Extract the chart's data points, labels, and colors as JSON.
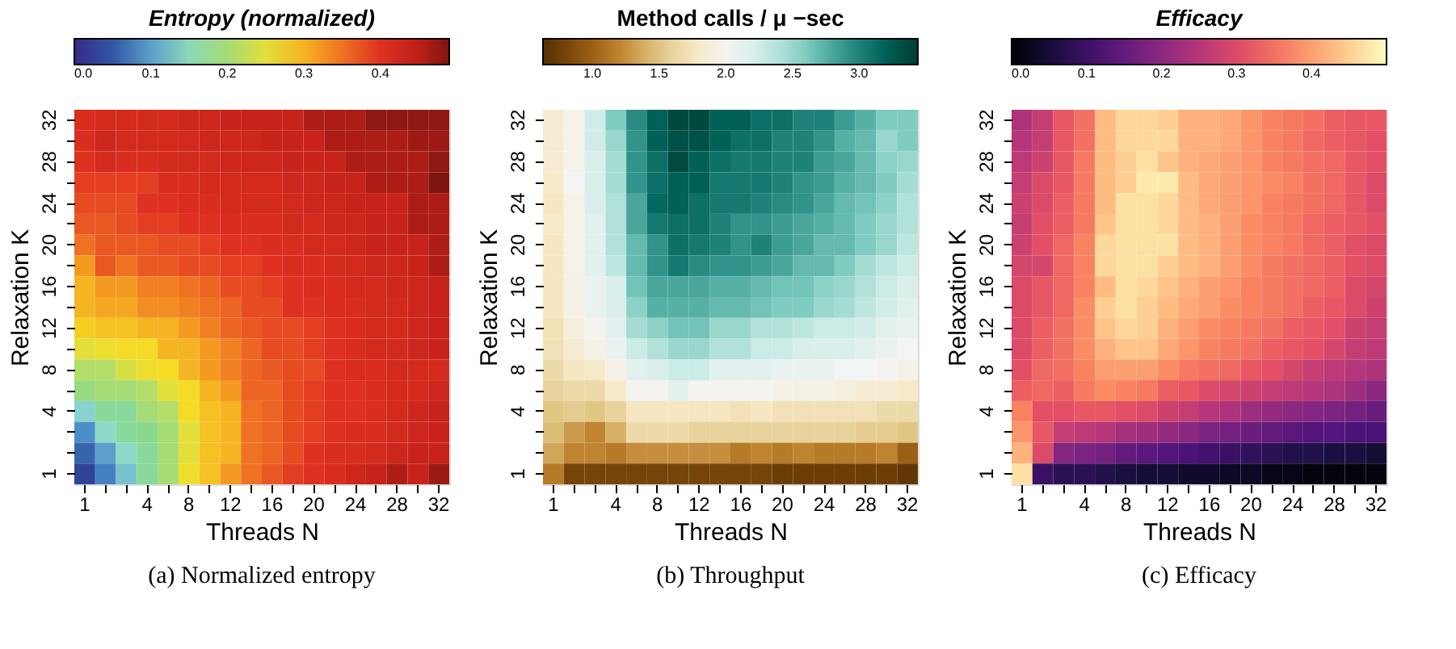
{
  "chart_data": [
    {
      "type": "heatmap",
      "clabel": "Entropy (normalized)",
      "xlabel": "Threads N",
      "ylabel": "Relaxation K",
      "annotations": [
        "(a) Normalized entropy"
      ],
      "categories": [
        "1",
        null,
        null,
        "4",
        null,
        "8",
        null,
        "12",
        null,
        "16",
        null,
        "20",
        null,
        "24",
        null,
        "28",
        null,
        "32"
      ],
      "y_categories": [
        "32",
        null,
        "28",
        null,
        "24",
        null,
        "20",
        null,
        "16",
        null,
        "12",
        null,
        "8",
        null,
        "4",
        null,
        null,
        "1"
      ],
      "clim": [
        0,
        0.49
      ],
      "cticks": [
        {
          "value": 0,
          "label": "0.0"
        },
        0.1,
        0.2,
        0.3,
        0.4
      ],
      "colors": [
        "#352a87",
        "#2f4fa0",
        "#4a8cc8",
        "#8fd8d0",
        "#86d98f",
        "#c5e05a",
        "#f5de25",
        "#f5a521",
        "#ee6a22",
        "#df3021",
        "#c42119",
        "#7f1510"
      ],
      "cells": [
        [
          0.41,
          0.42,
          0.42,
          0.42,
          0.42,
          0.43,
          0.43,
          0.44,
          0.44,
          0.44,
          0.44,
          0.46,
          0.46,
          0.46,
          0.48,
          0.48,
          0.48,
          0.48
        ],
        [
          0.41,
          0.43,
          0.42,
          0.42,
          0.42,
          0.42,
          0.43,
          0.43,
          0.43,
          0.44,
          0.44,
          0.44,
          0.46,
          0.46,
          0.46,
          0.46,
          0.47,
          0.47
        ],
        [
          0.4,
          0.42,
          0.41,
          0.41,
          0.42,
          0.42,
          0.42,
          0.43,
          0.43,
          0.43,
          0.44,
          0.44,
          0.44,
          0.46,
          0.46,
          0.46,
          0.46,
          0.48
        ],
        [
          0.39,
          0.39,
          0.39,
          0.39,
          0.41,
          0.41,
          0.42,
          0.42,
          0.42,
          0.42,
          0.43,
          0.43,
          0.44,
          0.44,
          0.46,
          0.46,
          0.46,
          0.49
        ],
        [
          0.38,
          0.38,
          0.38,
          0.4,
          0.4,
          0.41,
          0.41,
          0.42,
          0.42,
          0.42,
          0.42,
          0.43,
          0.43,
          0.44,
          0.44,
          0.44,
          0.46,
          0.46
        ],
        [
          0.37,
          0.37,
          0.38,
          0.39,
          0.39,
          0.4,
          0.4,
          0.41,
          0.41,
          0.41,
          0.42,
          0.42,
          0.43,
          0.43,
          0.44,
          0.44,
          0.46,
          0.46
        ],
        [
          0.35,
          0.37,
          0.37,
          0.37,
          0.38,
          0.38,
          0.39,
          0.4,
          0.4,
          0.41,
          0.41,
          0.42,
          0.42,
          0.43,
          0.44,
          0.44,
          0.44,
          0.46
        ],
        [
          0.32,
          0.37,
          0.35,
          0.37,
          0.37,
          0.38,
          0.38,
          0.39,
          0.39,
          0.4,
          0.41,
          0.41,
          0.42,
          0.42,
          0.43,
          0.43,
          0.44,
          0.46
        ],
        [
          0.3,
          0.32,
          0.32,
          0.34,
          0.34,
          0.35,
          0.36,
          0.38,
          0.38,
          0.39,
          0.4,
          0.41,
          0.41,
          0.42,
          0.42,
          0.43,
          0.43,
          0.44
        ],
        [
          0.3,
          0.31,
          0.31,
          0.33,
          0.33,
          0.34,
          0.35,
          0.36,
          0.38,
          0.38,
          0.4,
          0.4,
          0.41,
          0.41,
          0.42,
          0.42,
          0.43,
          0.44
        ],
        [
          0.28,
          0.29,
          0.29,
          0.3,
          0.3,
          0.32,
          0.34,
          0.36,
          0.37,
          0.38,
          0.38,
          0.39,
          0.4,
          0.41,
          0.42,
          0.42,
          0.43,
          0.44
        ],
        [
          0.25,
          0.26,
          0.27,
          0.27,
          0.3,
          0.3,
          0.32,
          0.34,
          0.36,
          0.38,
          0.38,
          0.39,
          0.4,
          0.41,
          0.42,
          0.42,
          0.43,
          0.44
        ],
        [
          0.21,
          0.21,
          0.24,
          0.26,
          0.27,
          0.3,
          0.32,
          0.34,
          0.36,
          0.37,
          0.38,
          0.38,
          0.4,
          0.41,
          0.41,
          0.42,
          0.42,
          0.42
        ],
        [
          0.19,
          0.2,
          0.2,
          0.21,
          0.25,
          0.27,
          0.3,
          0.32,
          0.36,
          0.36,
          0.38,
          0.39,
          0.4,
          0.4,
          0.41,
          0.42,
          0.42,
          0.43
        ],
        [
          0.13,
          0.17,
          0.17,
          0.2,
          0.21,
          0.27,
          0.29,
          0.3,
          0.35,
          0.36,
          0.38,
          0.39,
          0.4,
          0.4,
          0.41,
          0.42,
          0.43,
          0.44
        ],
        [
          0.09,
          0.14,
          0.17,
          0.18,
          0.2,
          0.25,
          0.29,
          0.3,
          0.35,
          0.36,
          0.38,
          0.39,
          0.4,
          0.41,
          0.41,
          0.42,
          0.43,
          0.44
        ],
        [
          0.06,
          0.1,
          0.14,
          0.17,
          0.2,
          0.25,
          0.29,
          0.3,
          0.35,
          0.36,
          0.38,
          0.4,
          0.41,
          0.41,
          0.42,
          0.43,
          0.44,
          0.44
        ],
        [
          0.03,
          0.08,
          0.12,
          0.17,
          0.2,
          0.26,
          0.29,
          0.32,
          0.35,
          0.37,
          0.39,
          0.4,
          0.41,
          0.43,
          0.44,
          0.46,
          0.44,
          0.47
        ]
      ]
    },
    {
      "type": "heatmap",
      "clabel": "Method calls /  μ −sec",
      "xlabel": "Threads N",
      "ylabel": "Relaxation K",
      "annotations": [
        "(b) Throughput"
      ],
      "categories": [
        "1",
        null,
        null,
        "4",
        null,
        "8",
        null,
        "12",
        null,
        "16",
        null,
        "20",
        null,
        "24",
        null,
        "28",
        null,
        "32"
      ],
      "y_categories": [
        "32",
        null,
        "28",
        null,
        "24",
        null,
        "20",
        null,
        "16",
        null,
        "12",
        null,
        "8",
        null,
        "4",
        null,
        null,
        "1"
      ],
      "clim": [
        0.63,
        3.44
      ],
      "cticks": [
        {
          "value": 1,
          "label": "1.0"
        },
        1.5,
        {
          "value": 2,
          "label": "2.0"
        },
        2.5,
        {
          "value": 3,
          "label": "3.0"
        }
      ],
      "colors": [
        "#543005",
        "#8c510a",
        "#bf812d",
        "#dfc27d",
        "#f6e8c3",
        "#f5f5f5",
        "#c7eae5",
        "#80cdc1",
        "#35978f",
        "#01665e",
        "#003c30"
      ],
      "cells": [
        [
          1.85,
          1.97,
          2.25,
          2.6,
          2.95,
          3.2,
          3.35,
          3.35,
          3.2,
          3.2,
          3.1,
          3.1,
          3.0,
          3.0,
          2.85,
          2.75,
          2.6,
          2.6
        ],
        [
          1.85,
          1.97,
          2.25,
          2.5,
          2.9,
          3.2,
          3.3,
          3.3,
          3.2,
          3.1,
          3.1,
          3.0,
          3.0,
          2.9,
          2.75,
          2.7,
          2.5,
          2.6
        ],
        [
          1.85,
          1.97,
          2.2,
          2.45,
          2.9,
          3.1,
          3.35,
          3.2,
          3.1,
          3.05,
          3.05,
          3.0,
          3.0,
          2.85,
          2.8,
          2.7,
          2.55,
          2.5
        ],
        [
          1.8,
          2.05,
          2.2,
          2.45,
          2.9,
          3.1,
          3.2,
          3.2,
          3.05,
          3.05,
          3.05,
          3.0,
          2.9,
          2.85,
          2.75,
          2.7,
          2.6,
          2.45
        ],
        [
          1.75,
          1.97,
          2.2,
          2.4,
          2.8,
          3.15,
          3.2,
          3.1,
          3.05,
          3.05,
          3.0,
          2.95,
          2.9,
          2.8,
          2.7,
          2.65,
          2.55,
          2.4
        ],
        [
          1.8,
          1.97,
          2.15,
          2.4,
          2.8,
          3.05,
          3.1,
          3.1,
          3.0,
          2.9,
          2.9,
          2.85,
          2.8,
          2.75,
          2.7,
          2.6,
          2.5,
          2.4
        ],
        [
          1.75,
          1.97,
          2.15,
          2.4,
          2.7,
          2.9,
          3.1,
          3.05,
          3.0,
          2.9,
          3.0,
          2.85,
          2.8,
          2.7,
          2.7,
          2.6,
          2.5,
          2.35
        ],
        [
          1.75,
          1.97,
          2.15,
          2.35,
          2.7,
          2.9,
          3.05,
          2.95,
          2.9,
          2.9,
          2.85,
          2.8,
          2.7,
          2.7,
          2.6,
          2.45,
          2.35,
          2.3
        ],
        [
          1.75,
          1.95,
          2.1,
          2.2,
          2.65,
          2.8,
          2.8,
          2.8,
          2.75,
          2.75,
          2.7,
          2.65,
          2.65,
          2.55,
          2.5,
          2.4,
          2.3,
          2.2
        ],
        [
          1.75,
          1.95,
          2.1,
          2.2,
          2.55,
          2.75,
          2.75,
          2.75,
          2.7,
          2.7,
          2.65,
          2.6,
          2.6,
          2.5,
          2.45,
          2.35,
          2.25,
          2.15
        ],
        [
          1.7,
          1.9,
          2.0,
          2.15,
          2.45,
          2.55,
          2.65,
          2.65,
          2.5,
          2.5,
          2.4,
          2.4,
          2.35,
          2.3,
          2.3,
          2.25,
          2.15,
          2.1
        ],
        [
          1.7,
          1.85,
          1.95,
          2.1,
          2.3,
          2.4,
          2.5,
          2.5,
          2.4,
          2.4,
          2.3,
          2.3,
          2.2,
          2.2,
          2.2,
          2.15,
          2.1,
          2.05
        ],
        [
          1.65,
          1.75,
          1.8,
          1.95,
          2.15,
          2.2,
          2.3,
          2.3,
          2.15,
          2.15,
          2.15,
          2.1,
          2.1,
          2.1,
          2.05,
          2.05,
          2.0,
          1.95
        ],
        [
          1.6,
          1.65,
          1.65,
          1.8,
          2.0,
          2.0,
          2.15,
          2.0,
          2.0,
          2.0,
          2.0,
          1.95,
          1.95,
          1.95,
          1.9,
          1.85,
          1.85,
          1.8
        ],
        [
          1.5,
          1.55,
          1.5,
          1.6,
          1.75,
          1.75,
          1.75,
          1.75,
          1.75,
          1.7,
          1.75,
          1.7,
          1.7,
          1.7,
          1.7,
          1.7,
          1.65,
          1.65
        ],
        [
          1.45,
          1.3,
          1.2,
          1.4,
          1.65,
          1.65,
          1.65,
          1.6,
          1.6,
          1.6,
          1.6,
          1.6,
          1.6,
          1.6,
          1.6,
          1.55,
          1.55,
          1.5
        ],
        [
          1.35,
          1.2,
          1.2,
          1.15,
          1.25,
          1.25,
          1.25,
          1.25,
          1.25,
          1.15,
          1.2,
          1.15,
          1.2,
          1.15,
          1.15,
          1.15,
          1.2,
          1.0
        ],
        [
          1.15,
          0.8,
          0.8,
          0.8,
          0.8,
          0.8,
          0.8,
          0.8,
          0.8,
          0.8,
          0.8,
          0.75,
          0.75,
          0.75,
          0.75,
          0.75,
          0.75,
          0.7
        ]
      ]
    },
    {
      "type": "heatmap",
      "clabel": "Efficacy",
      "xlabel": "Threads N",
      "ylabel": "Relaxation K",
      "annotations": [
        "(c) Efficacy"
      ],
      "categories": [
        "1",
        null,
        null,
        "4",
        null,
        "8",
        null,
        "12",
        null,
        "16",
        null,
        "20",
        null,
        "24",
        null,
        "28",
        null,
        "32"
      ],
      "y_categories": [
        "32",
        null,
        "28",
        null,
        "24",
        null,
        "20",
        null,
        "16",
        null,
        "12",
        null,
        "8",
        null,
        "4",
        null,
        null,
        "1"
      ],
      "clim": [
        0,
        0.5
      ],
      "cticks": [
        {
          "value": 0,
          "label": "0.0"
        },
        0.1,
        0.2,
        0.3,
        0.4
      ],
      "colors": [
        "#000004",
        "#1c1044",
        "#4f127b",
        "#812581",
        "#b5367a",
        "#e55064",
        "#fb8761",
        "#fec287",
        "#fcfdbf"
      ],
      "cells": [
        [
          0.24,
          0.27,
          0.32,
          0.35,
          0.43,
          0.46,
          0.46,
          0.45,
          0.42,
          0.42,
          0.41,
          0.39,
          0.37,
          0.36,
          0.35,
          0.33,
          0.32,
          0.32
        ],
        [
          0.25,
          0.27,
          0.32,
          0.35,
          0.43,
          0.46,
          0.46,
          0.46,
          0.42,
          0.42,
          0.41,
          0.39,
          0.37,
          0.36,
          0.34,
          0.33,
          0.32,
          0.31
        ],
        [
          0.26,
          0.28,
          0.32,
          0.36,
          0.43,
          0.45,
          0.47,
          0.44,
          0.42,
          0.41,
          0.4,
          0.39,
          0.37,
          0.36,
          0.35,
          0.34,
          0.32,
          0.31
        ],
        [
          0.27,
          0.3,
          0.32,
          0.36,
          0.43,
          0.45,
          0.48,
          0.48,
          0.43,
          0.41,
          0.4,
          0.39,
          0.38,
          0.37,
          0.35,
          0.34,
          0.32,
          0.3
        ],
        [
          0.28,
          0.3,
          0.33,
          0.36,
          0.43,
          0.47,
          0.47,
          0.46,
          0.43,
          0.41,
          0.4,
          0.39,
          0.37,
          0.36,
          0.35,
          0.34,
          0.32,
          0.3
        ],
        [
          0.27,
          0.31,
          0.33,
          0.36,
          0.44,
          0.47,
          0.47,
          0.46,
          0.43,
          0.42,
          0.4,
          0.38,
          0.37,
          0.36,
          0.34,
          0.33,
          0.32,
          0.31
        ],
        [
          0.28,
          0.31,
          0.34,
          0.37,
          0.46,
          0.47,
          0.47,
          0.47,
          0.43,
          0.42,
          0.4,
          0.38,
          0.37,
          0.36,
          0.34,
          0.33,
          0.31,
          0.3
        ],
        [
          0.29,
          0.29,
          0.34,
          0.37,
          0.46,
          0.47,
          0.47,
          0.45,
          0.43,
          0.42,
          0.4,
          0.38,
          0.36,
          0.35,
          0.34,
          0.33,
          0.31,
          0.3
        ],
        [
          0.3,
          0.32,
          0.34,
          0.37,
          0.43,
          0.47,
          0.46,
          0.44,
          0.42,
          0.4,
          0.39,
          0.37,
          0.36,
          0.35,
          0.34,
          0.33,
          0.3,
          0.29
        ],
        [
          0.3,
          0.32,
          0.34,
          0.38,
          0.45,
          0.47,
          0.45,
          0.43,
          0.41,
          0.4,
          0.38,
          0.37,
          0.36,
          0.35,
          0.33,
          0.32,
          0.3,
          0.28
        ],
        [
          0.3,
          0.33,
          0.35,
          0.38,
          0.44,
          0.46,
          0.45,
          0.42,
          0.4,
          0.38,
          0.37,
          0.36,
          0.35,
          0.33,
          0.32,
          0.31,
          0.28,
          0.27
        ],
        [
          0.3,
          0.33,
          0.35,
          0.38,
          0.42,
          0.44,
          0.44,
          0.41,
          0.39,
          0.37,
          0.36,
          0.35,
          0.33,
          0.32,
          0.31,
          0.29,
          0.27,
          0.26
        ],
        [
          0.31,
          0.34,
          0.35,
          0.37,
          0.4,
          0.4,
          0.4,
          0.38,
          0.36,
          0.35,
          0.34,
          0.32,
          0.31,
          0.29,
          0.27,
          0.26,
          0.25,
          0.24
        ],
        [
          0.33,
          0.34,
          0.33,
          0.36,
          0.38,
          0.37,
          0.36,
          0.33,
          0.32,
          0.3,
          0.29,
          0.28,
          0.27,
          0.26,
          0.25,
          0.24,
          0.22,
          0.2
        ],
        [
          0.37,
          0.31,
          0.31,
          0.32,
          0.32,
          0.31,
          0.3,
          0.28,
          0.27,
          0.25,
          0.24,
          0.22,
          0.21,
          0.2,
          0.19,
          0.18,
          0.17,
          0.16
        ],
        [
          0.39,
          0.32,
          0.27,
          0.26,
          0.25,
          0.23,
          0.22,
          0.21,
          0.2,
          0.18,
          0.17,
          0.16,
          0.15,
          0.14,
          0.13,
          0.13,
          0.12,
          0.12
        ],
        [
          0.42,
          0.3,
          0.19,
          0.18,
          0.17,
          0.15,
          0.14,
          0.13,
          0.12,
          0.11,
          0.1,
          0.09,
          0.08,
          0.07,
          0.07,
          0.06,
          0.06,
          0.05
        ],
        [
          0.47,
          0.1,
          0.08,
          0.08,
          0.07,
          0.06,
          0.05,
          0.05,
          0.04,
          0.04,
          0.03,
          0.03,
          0.02,
          0.02,
          0.01,
          0.01,
          0.01,
          0.01
        ]
      ]
    }
  ]
}
